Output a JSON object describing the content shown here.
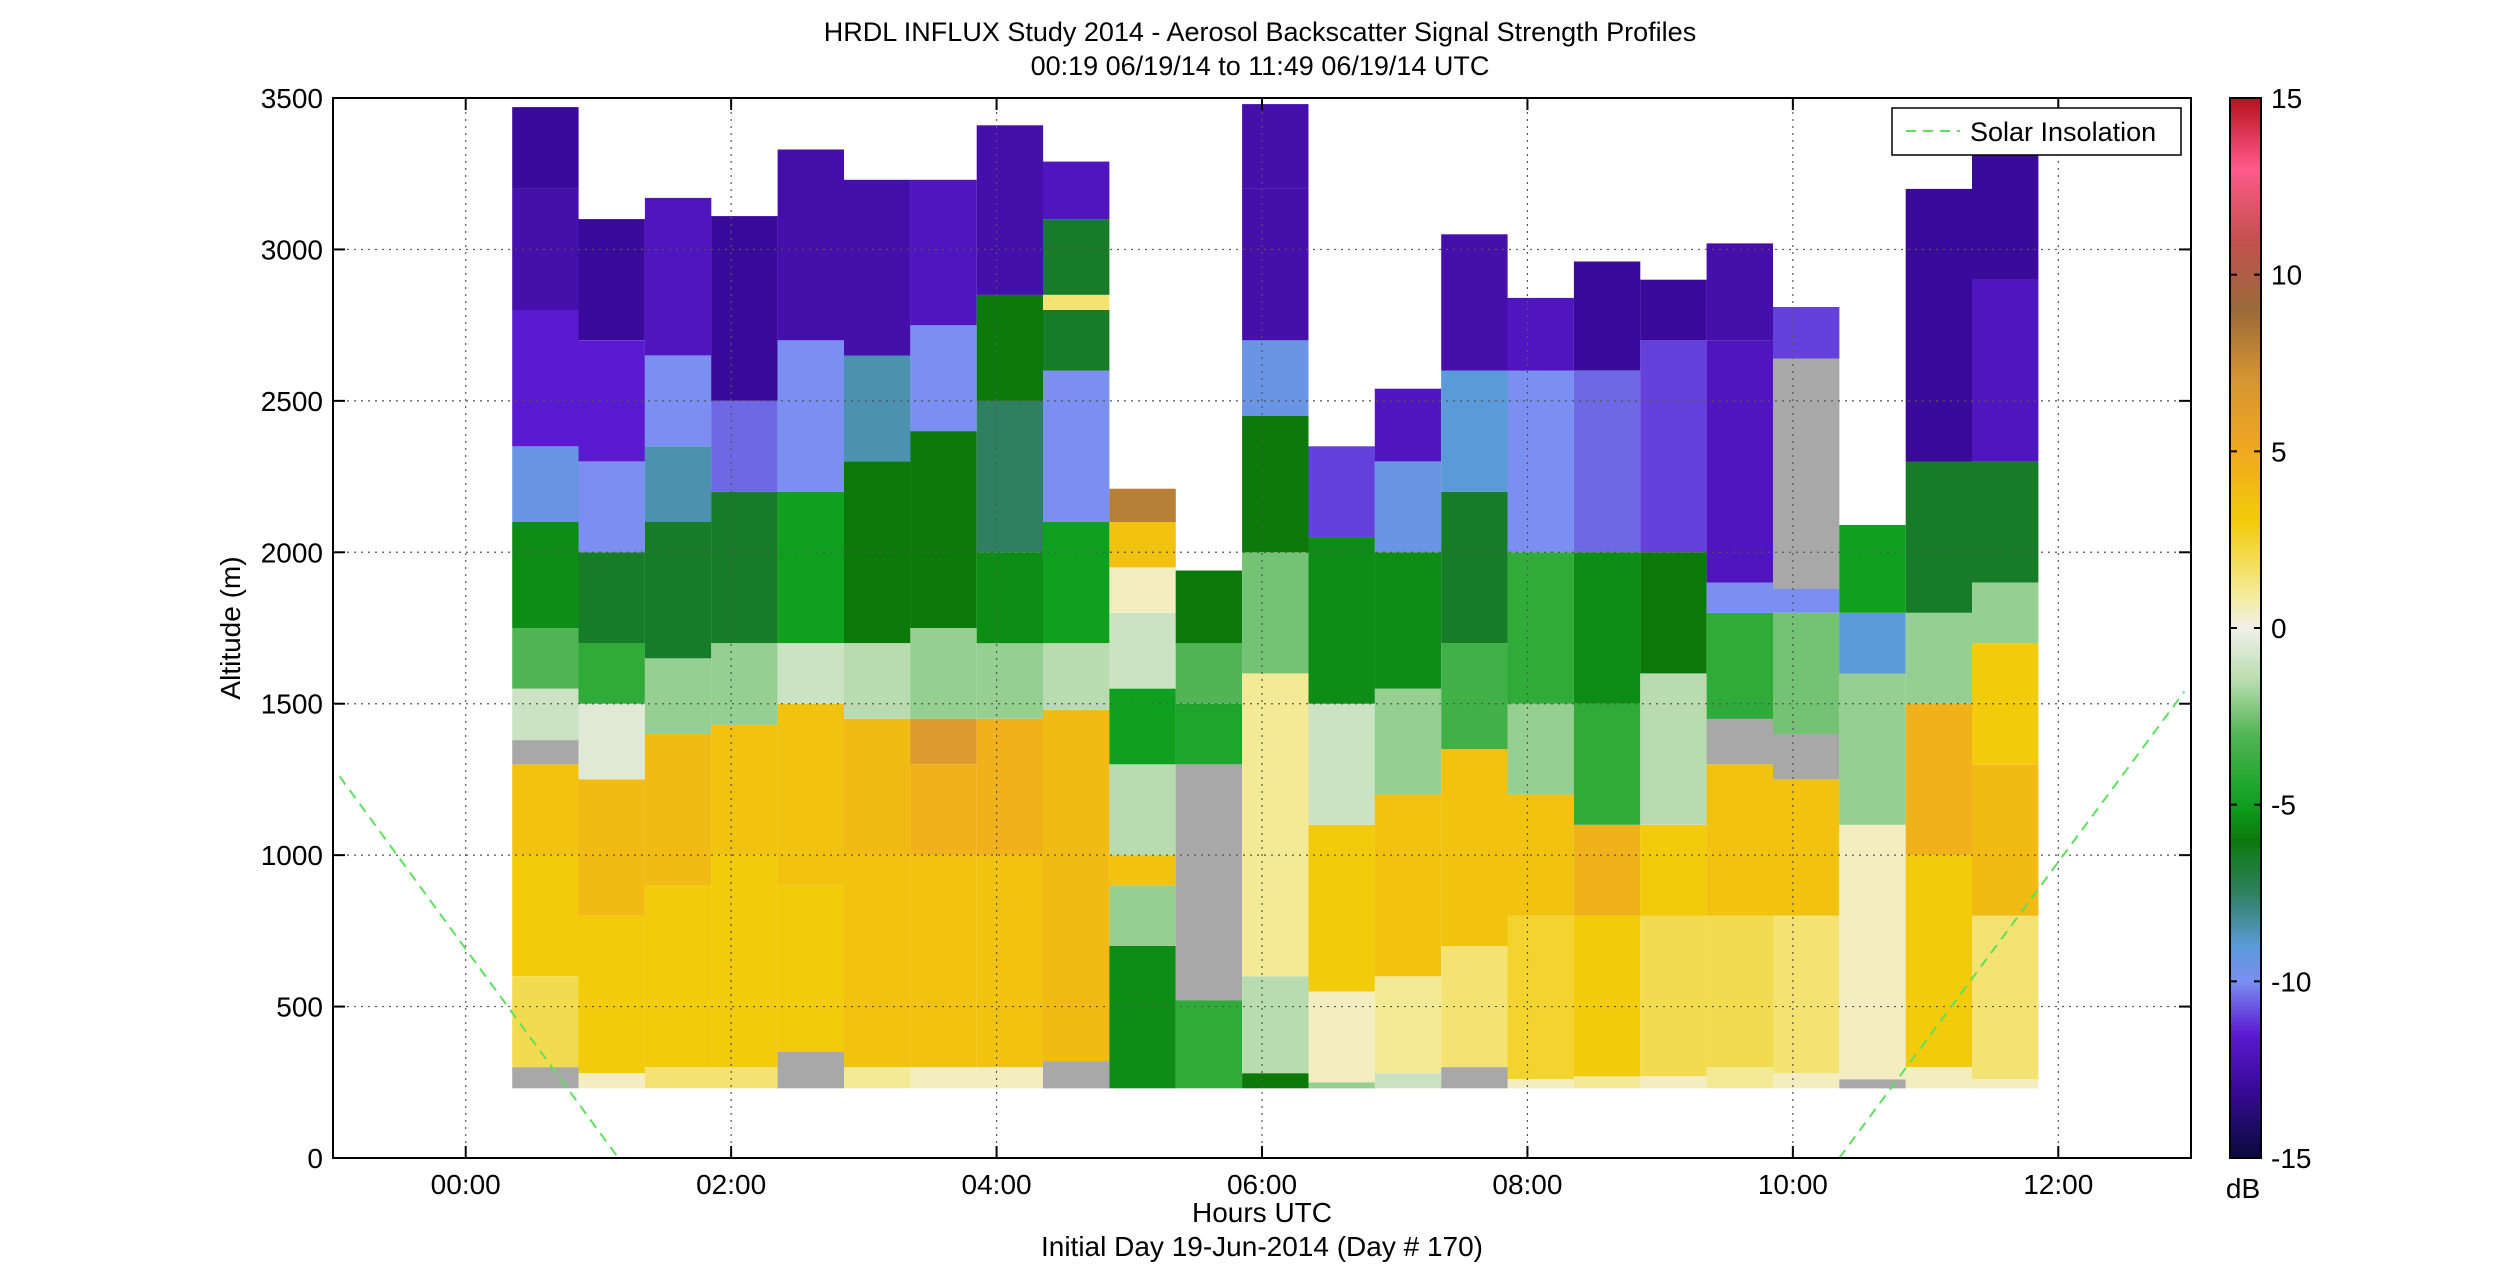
{
  "chart_data": {
    "type": "heatmap",
    "title": "HRDL INFLUX Study 2014 - Aerosol Backscatter Signal Strength Profiles",
    "subtitle": "00:19 06/19/14 to 11:49 06/19/14  UTC",
    "xlabel": "Hours UTC",
    "xlabel2": "Initial Day 19-Jun-2014 (Day # 170)",
    "ylabel": "Altitude (m)",
    "xlim": [
      -1,
      13
    ],
    "ylim": [
      0,
      3500
    ],
    "grid": true,
    "x_ticks": [
      {
        "v": 0,
        "label": "00:00"
      },
      {
        "v": 2,
        "label": "02:00"
      },
      {
        "v": 4,
        "label": "04:00"
      },
      {
        "v": 6,
        "label": "06:00"
      },
      {
        "v": 8,
        "label": "08:00"
      },
      {
        "v": 10,
        "label": "10:00"
      },
      {
        "v": 12,
        "label": "12:00"
      }
    ],
    "y_ticks": [
      {
        "v": 0,
        "label": "0"
      },
      {
        "v": 500,
        "label": "500"
      },
      {
        "v": 1000,
        "label": "1000"
      },
      {
        "v": 1500,
        "label": "1500"
      },
      {
        "v": 2000,
        "label": "2000"
      },
      {
        "v": 2500,
        "label": "2500"
      },
      {
        "v": 3000,
        "label": "3000"
      },
      {
        "v": 3500,
        "label": "3500"
      }
    ],
    "colorbar": {
      "unit": "dB",
      "range": [
        -15,
        15
      ],
      "ticks": [
        {
          "v": 15,
          "label": "15"
        },
        {
          "v": 10,
          "label": "10"
        },
        {
          "v": 5,
          "label": "5"
        },
        {
          "v": 0,
          "label": "0"
        },
        {
          "v": -5,
          "label": "-5"
        },
        {
          "v": -10,
          "label": "-10"
        },
        {
          "v": -15,
          "label": "-15"
        }
      ],
      "stops": [
        {
          "v": -15,
          "c": "#0a0a3a"
        },
        {
          "v": -13,
          "c": "#3a0a9a"
        },
        {
          "v": -11.5,
          "c": "#5a1ad0"
        },
        {
          "v": -10,
          "c": "#7a8ff0"
        },
        {
          "v": -9,
          "c": "#5a9ad8"
        },
        {
          "v": -7.5,
          "c": "#2f8060"
        },
        {
          "v": -6,
          "c": "#0b7a0b"
        },
        {
          "v": -5,
          "c": "#0ea01e"
        },
        {
          "v": -3,
          "c": "#52b555"
        },
        {
          "v": -1.5,
          "c": "#b8dcb0"
        },
        {
          "v": 0,
          "c": "#f2f0e8"
        },
        {
          "v": 1,
          "c": "#f4ea96"
        },
        {
          "v": 3,
          "c": "#f2cb0a"
        },
        {
          "v": 5,
          "c": "#f0a820"
        },
        {
          "v": 7,
          "c": "#d69532"
        },
        {
          "v": 9,
          "c": "#9a6a3a"
        },
        {
          "v": 11,
          "c": "#c45050"
        },
        {
          "v": 13,
          "c": "#ff5a8a"
        },
        {
          "v": 15,
          "c": "#b8101e"
        }
      ]
    },
    "legend": {
      "entry": "Solar Insolation",
      "position": "top-right",
      "color": "#5de05d"
    },
    "solar_insolation": [
      {
        "x": -0.95,
        "y": 1260
      },
      {
        "x": 1.15,
        "y": 0
      },
      {
        "x": 10.35,
        "y": 0
      },
      {
        "x": 12.95,
        "y": 1540
      }
    ],
    "profile_width_h": 0.5,
    "profiles": [
      {
        "t": 0.6,
        "levels": [
          {
            "top": 300,
            "db": null
          },
          {
            "top": 600,
            "db": 2.0
          },
          {
            "top": 1000,
            "db": 3.0
          },
          {
            "top": 1300,
            "db": 3.5
          },
          {
            "top": 1380,
            "db": null
          },
          {
            "top": 1550,
            "db": -1.0
          },
          {
            "top": 1750,
            "db": -3.0
          },
          {
            "top": 2100,
            "db": -5.5
          },
          {
            "top": 2350,
            "db": -9.5
          },
          {
            "top": 2800,
            "db": -11.5
          },
          {
            "top": 3200,
            "db": -12.5
          },
          {
            "top": 3470,
            "db": -13.0
          }
        ]
      },
      {
        "t": 1.1,
        "levels": [
          {
            "top": 280,
            "db": 0.5
          },
          {
            "top": 800,
            "db": 3.0
          },
          {
            "top": 1250,
            "db": 4.0
          },
          {
            "top": 1500,
            "db": -0.5
          },
          {
            "top": 1700,
            "db": -4.0
          },
          {
            "top": 2000,
            "db": -6.5
          },
          {
            "top": 2300,
            "db": -10.0
          },
          {
            "top": 2700,
            "db": -11.5
          },
          {
            "top": 3100,
            "db": -13.0
          }
        ]
      },
      {
        "t": 1.6,
        "levels": [
          {
            "top": 300,
            "db": 1.5
          },
          {
            "top": 900,
            "db": 3.0
          },
          {
            "top": 1400,
            "db": 4.0
          },
          {
            "top": 1650,
            "db": -2.0
          },
          {
            "top": 2100,
            "db": -6.5
          },
          {
            "top": 2350,
            "db": -8.5
          },
          {
            "top": 2650,
            "db": -10.0
          },
          {
            "top": 3170,
            "db": -12.0
          }
        ]
      },
      {
        "t": 2.1,
        "levels": [
          {
            "top": 300,
            "db": 1.5
          },
          {
            "top": 1000,
            "db": 3.0
          },
          {
            "top": 1430,
            "db": 3.5
          },
          {
            "top": 1700,
            "db": -2.0
          },
          {
            "top": 2200,
            "db": -6.5
          },
          {
            "top": 2500,
            "db": -10.5
          },
          {
            "top": 3110,
            "db": -13.0
          }
        ]
      },
      {
        "t": 2.6,
        "levels": [
          {
            "top": 350,
            "db": null
          },
          {
            "top": 900,
            "db": 3.0
          },
          {
            "top": 1500,
            "db": 3.5
          },
          {
            "top": 1700,
            "db": -1.0
          },
          {
            "top": 2200,
            "db": -5.0
          },
          {
            "top": 2700,
            "db": -10.0
          },
          {
            "top": 3330,
            "db": -12.5
          }
        ]
      },
      {
        "t": 3.1,
        "levels": [
          {
            "top": 300,
            "db": 1.0
          },
          {
            "top": 1000,
            "db": 3.5
          },
          {
            "top": 1450,
            "db": 4.0
          },
          {
            "top": 1700,
            "db": -1.5
          },
          {
            "top": 2300,
            "db": -6.0
          },
          {
            "top": 2650,
            "db": -8.5
          },
          {
            "top": 3230,
            "db": -12.5
          }
        ]
      },
      {
        "t": 3.6,
        "levels": [
          {
            "top": 300,
            "db": 0.5
          },
          {
            "top": 1000,
            "db": 3.5
          },
          {
            "top": 1300,
            "db": 4.5
          },
          {
            "top": 1450,
            "db": 6.5
          },
          {
            "top": 1750,
            "db": -2.0
          },
          {
            "top": 2400,
            "db": -6.0
          },
          {
            "top": 2750,
            "db": -10.0
          },
          {
            "top": 3230,
            "db": -12.0
          }
        ]
      },
      {
        "t": 4.1,
        "levels": [
          {
            "top": 300,
            "db": 0.5
          },
          {
            "top": 1000,
            "db": 3.5
          },
          {
            "top": 1450,
            "db": 4.5
          },
          {
            "top": 1700,
            "db": -2.0
          },
          {
            "top": 2000,
            "db": -5.5
          },
          {
            "top": 2500,
            "db": -7.5
          },
          {
            "top": 2850,
            "db": -6.0
          },
          {
            "top": 3410,
            "db": -12.5
          }
        ]
      },
      {
        "t": 4.6,
        "levels": [
          {
            "top": 320,
            "db": null
          },
          {
            "top": 1000,
            "db": 4.0
          },
          {
            "top": 1480,
            "db": 4.0
          },
          {
            "top": 1700,
            "db": -1.5
          },
          {
            "top": 2100,
            "db": -5.0
          },
          {
            "top": 2600,
            "db": -10.0
          },
          {
            "top": 2800,
            "db": -6.5
          },
          {
            "top": 2850,
            "db": 1.5
          },
          {
            "top": 3100,
            "db": -6.5
          },
          {
            "top": 3290,
            "db": -12.0
          }
        ]
      },
      {
        "t": 5.1,
        "levels": [
          {
            "top": 700,
            "db": -5.5
          },
          {
            "top": 900,
            "db": -2.0
          },
          {
            "top": 1000,
            "db": 3.5
          },
          {
            "top": 1300,
            "db": -1.5
          },
          {
            "top": 1550,
            "db": -5.0
          },
          {
            "top": 1800,
            "db": -1.0
          },
          {
            "top": 1950,
            "db": 0.5
          },
          {
            "top": 2100,
            "db": 3.5
          },
          {
            "top": 2210,
            "db": 8.0
          }
        ]
      },
      {
        "t": 5.6,
        "levels": [
          {
            "top": 520,
            "db": -4.0
          },
          {
            "top": 1300,
            "db": null
          },
          {
            "top": 1500,
            "db": -4.5
          },
          {
            "top": 1700,
            "db": -3.0
          },
          {
            "top": 1940,
            "db": -6.0
          }
        ]
      },
      {
        "t": 6.1,
        "levels": [
          {
            "top": 280,
            "db": -6.0
          },
          {
            "top": 600,
            "db": -1.5
          },
          {
            "top": 1600,
            "db": 1.0
          },
          {
            "top": 2000,
            "db": -2.5
          },
          {
            "top": 2450,
            "db": -6.0
          },
          {
            "top": 2700,
            "db": -9.5
          },
          {
            "top": 3200,
            "db": -12.5
          },
          {
            "top": 3480,
            "db": -12.5
          }
        ]
      },
      {
        "t": 6.6,
        "levels": [
          {
            "top": 250,
            "db": -2.0
          },
          {
            "top": 550,
            "db": 0.5
          },
          {
            "top": 1100,
            "db": 3.0
          },
          {
            "top": 1500,
            "db": -1.0
          },
          {
            "top": 2050,
            "db": -5.5
          },
          {
            "top": 2350,
            "db": -11.0
          }
        ]
      },
      {
        "t": 7.1,
        "levels": [
          {
            "top": 280,
            "db": -1.0
          },
          {
            "top": 600,
            "db": 1.0
          },
          {
            "top": 1200,
            "db": 3.5
          },
          {
            "top": 1550,
            "db": -2.0
          },
          {
            "top": 2000,
            "db": -5.5
          },
          {
            "top": 2300,
            "db": -9.5
          },
          {
            "top": 2540,
            "db": -12.0
          }
        ]
      },
      {
        "t": 7.6,
        "levels": [
          {
            "top": 300,
            "db": null
          },
          {
            "top": 700,
            "db": 1.5
          },
          {
            "top": 1350,
            "db": 3.5
          },
          {
            "top": 1700,
            "db": -3.5
          },
          {
            "top": 2200,
            "db": -6.5
          },
          {
            "top": 2600,
            "db": -9.0
          },
          {
            "top": 3050,
            "db": -12.5
          }
        ]
      },
      {
        "t": 8.1,
        "levels": [
          {
            "top": 260,
            "db": 0.5
          },
          {
            "top": 800,
            "db": 2.5
          },
          {
            "top": 1200,
            "db": 3.5
          },
          {
            "top": 1500,
            "db": -2.0
          },
          {
            "top": 2000,
            "db": -4.0
          },
          {
            "top": 2600,
            "db": -10.0
          },
          {
            "top": 2840,
            "db": -12.0
          }
        ]
      },
      {
        "t": 8.6,
        "levels": [
          {
            "top": 270,
            "db": 1.0
          },
          {
            "top": 800,
            "db": 3.0
          },
          {
            "top": 1100,
            "db": 4.5
          },
          {
            "top": 1500,
            "db": -4.0
          },
          {
            "top": 2000,
            "db": -5.5
          },
          {
            "top": 2600,
            "db": -10.5
          },
          {
            "top": 2960,
            "db": -13.0
          }
        ]
      },
      {
        "t": 9.1,
        "levels": [
          {
            "top": 270,
            "db": 0.5
          },
          {
            "top": 800,
            "db": 2.0
          },
          {
            "top": 1100,
            "db": 3.0
          },
          {
            "top": 1600,
            "db": -1.5
          },
          {
            "top": 2000,
            "db": -6.0
          },
          {
            "top": 2700,
            "db": -11.0
          },
          {
            "top": 2900,
            "db": -13.0
          }
        ]
      },
      {
        "t": 9.6,
        "levels": [
          {
            "top": 300,
            "db": 1.0
          },
          {
            "top": 800,
            "db": 2.0
          },
          {
            "top": 1300,
            "db": 3.5
          },
          {
            "top": 1450,
            "db": null
          },
          {
            "top": 1800,
            "db": -4.0
          },
          {
            "top": 1900,
            "db": -10.0
          },
          {
            "top": 2700,
            "db": -12.0
          },
          {
            "top": 3020,
            "db": -12.5
          }
        ]
      },
      {
        "t": 10.1,
        "levels": [
          {
            "top": 280,
            "db": 0.5
          },
          {
            "top": 800,
            "db": 1.5
          },
          {
            "top": 1250,
            "db": 3.5
          },
          {
            "top": 1400,
            "db": null
          },
          {
            "top": 1800,
            "db": -2.5
          },
          {
            "top": 1880,
            "db": -10.0
          },
          {
            "top": 2640,
            "db": null
          },
          {
            "top": 2810,
            "db": -11.0
          }
        ]
      },
      {
        "t": 10.6,
        "levels": [
          {
            "top": 260,
            "db": null
          },
          {
            "top": 1100,
            "db": 0.5
          },
          {
            "top": 1600,
            "db": -2.0
          },
          {
            "top": 1800,
            "db": -9.0
          },
          {
            "top": 2090,
            "db": -5.0
          }
        ]
      },
      {
        "t": 11.1,
        "levels": [
          {
            "top": 300,
            "db": 0.5
          },
          {
            "top": 1000,
            "db": 3.0
          },
          {
            "top": 1500,
            "db": 4.5
          },
          {
            "top": 1800,
            "db": -2.0
          },
          {
            "top": 2300,
            "db": -6.5
          },
          {
            "top": 3200,
            "db": -13.0
          }
        ]
      },
      {
        "t": 11.6,
        "levels": [
          {
            "top": 260,
            "db": 0.5
          },
          {
            "top": 800,
            "db": 1.5
          },
          {
            "top": 1300,
            "db": 4.0
          },
          {
            "top": 1700,
            "db": 3.0
          },
          {
            "top": 1900,
            "db": -2.0
          },
          {
            "top": 2300,
            "db": -6.5
          },
          {
            "top": 2900,
            "db": -12.0
          },
          {
            "top": 3340,
            "db": -13.0
          }
        ]
      }
    ]
  }
}
